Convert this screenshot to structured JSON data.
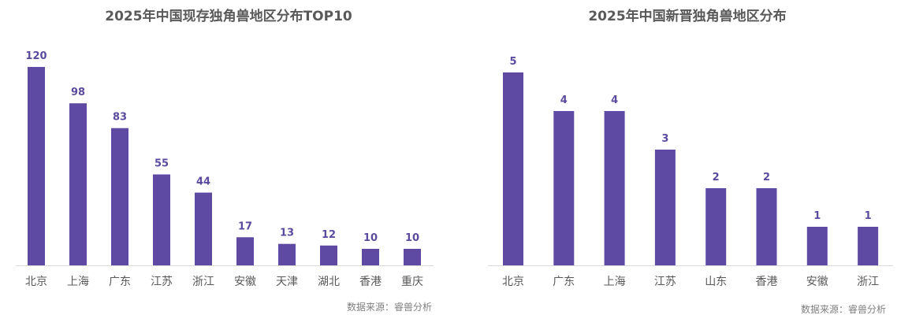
{
  "chart_data": [
    {
      "type": "bar",
      "title": "2025年中国现存独角兽地区分布TOP10",
      "categories": [
        "北京",
        "上海",
        "广东",
        "江苏",
        "浙江",
        "安徽",
        "天津",
        "湖北",
        "香港",
        "重庆"
      ],
      "values": [
        120,
        98,
        83,
        55,
        44,
        17,
        13,
        12,
        10,
        10
      ],
      "xlabel": "",
      "ylabel": "",
      "ylim": [
        0,
        120
      ],
      "grid": false,
      "bar_color": "#5e4aa3",
      "source": "数据来源：睿兽分析"
    },
    {
      "type": "bar",
      "title": "2025年中国新晋独角兽地区分布",
      "categories": [
        "北京",
        "广东",
        "上海",
        "江苏",
        "山东",
        "香港",
        "安徽",
        "浙江"
      ],
      "values": [
        5,
        4,
        4,
        3,
        2,
        2,
        1,
        1
      ],
      "xlabel": "",
      "ylabel": "",
      "ylim": [
        0,
        5
      ],
      "grid": false,
      "bar_color": "#5e4aa3",
      "source": "数据来源：睿兽分析"
    }
  ]
}
